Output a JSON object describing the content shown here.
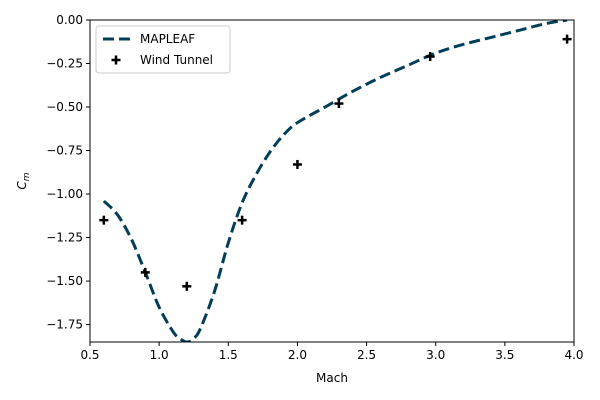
{
  "chart_data": {
    "type": "line",
    "xlabel": "Mach",
    "ylabel_base": "C",
    "ylabel_sub": "m",
    "xlim": [
      0.5,
      4.0
    ],
    "ylim": [
      -1.85,
      0.0
    ],
    "x_ticks": [
      0.5,
      1.0,
      1.5,
      2.0,
      2.5,
      3.0,
      3.5,
      4.0
    ],
    "x_tick_labels": [
      "0.5",
      "1.0",
      "1.5",
      "2.0",
      "2.5",
      "3.0",
      "3.5",
      "4.0"
    ],
    "y_ticks": [
      0.0,
      -0.25,
      -0.5,
      -0.75,
      -1.0,
      -1.25,
      -1.5,
      -1.75
    ],
    "y_tick_labels": [
      "0.00",
      "−0.25",
      "−0.50",
      "−0.75",
      "−1.00",
      "−1.25",
      "−1.50",
      "−1.75"
    ],
    "grid": false,
    "legend_position": "top-left",
    "series": [
      {
        "name": "MAPLEAF",
        "style": "dashed-line",
        "color": "#023e58",
        "x": [
          0.6,
          0.7,
          0.8,
          0.9,
          1.0,
          1.1,
          1.15,
          1.2,
          1.25,
          1.3,
          1.4,
          1.5,
          1.6,
          1.7,
          1.8,
          1.9,
          2.0,
          2.2,
          2.4,
          2.6,
          2.8,
          3.0,
          3.2,
          3.4,
          3.6,
          3.8,
          3.95
        ],
        "y": [
          -1.04,
          -1.12,
          -1.26,
          -1.45,
          -1.65,
          -1.79,
          -1.83,
          -1.85,
          -1.83,
          -1.77,
          -1.56,
          -1.28,
          -1.05,
          -0.89,
          -0.76,
          -0.66,
          -0.59,
          -0.5,
          -0.41,
          -0.33,
          -0.26,
          -0.19,
          -0.14,
          -0.1,
          -0.06,
          -0.02,
          0.0
        ]
      },
      {
        "name": "Wind Tunnel",
        "style": "plus-markers",
        "color": "#000000",
        "x": [
          0.6,
          0.9,
          1.2,
          1.6,
          2.0,
          2.3,
          2.96,
          3.95
        ],
        "y": [
          -1.15,
          -1.45,
          -1.53,
          -1.15,
          -0.83,
          -0.48,
          -0.21,
          -0.11
        ]
      }
    ]
  }
}
